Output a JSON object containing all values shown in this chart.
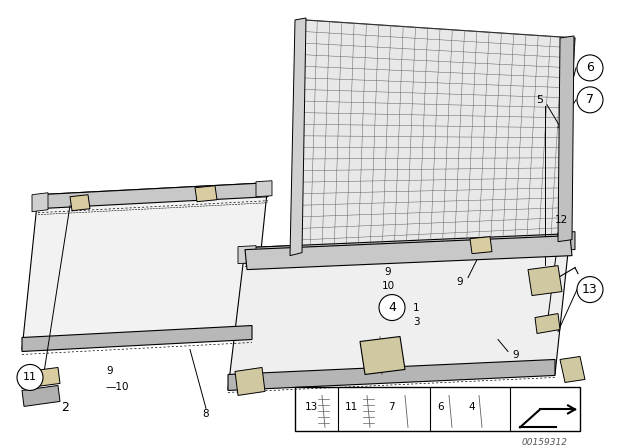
{
  "background_color": "#ffffff",
  "line_color": "#000000",
  "fig_width": 6.4,
  "fig_height": 4.48,
  "dpi": 100,
  "watermark": "00159312",
  "diagram_number": "2",
  "bottom_items": [
    {
      "label": "13",
      "has_left_border": true
    },
    {
      "label": "11",
      "has_left_border": true
    },
    {
      "label": "7",
      "has_left_border": false
    },
    {
      "label": "6",
      "has_left_border": true
    },
    {
      "label": "4",
      "has_left_border": false
    }
  ]
}
